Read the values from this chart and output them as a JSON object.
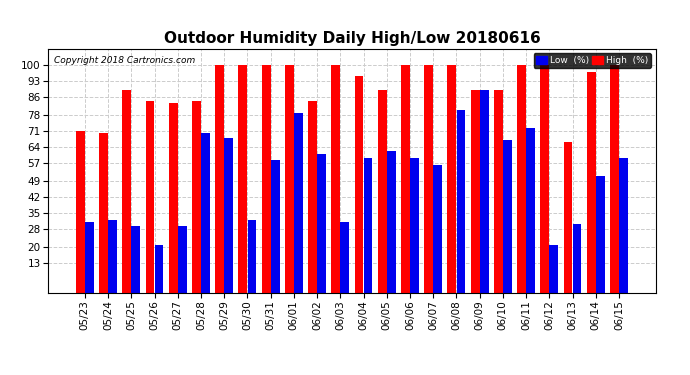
{
  "title": "Outdoor Humidity Daily High/Low 20180616",
  "copyright": "Copyright 2018 Cartronics.com",
  "legend_low": "Low  (%)",
  "legend_high": "High  (%)",
  "categories": [
    "05/23",
    "05/24",
    "05/25",
    "05/26",
    "05/27",
    "05/28",
    "05/29",
    "05/30",
    "05/31",
    "06/01",
    "06/02",
    "06/03",
    "06/04",
    "06/05",
    "06/06",
    "06/07",
    "06/08",
    "06/09",
    "06/10",
    "06/11",
    "06/12",
    "06/13",
    "06/14",
    "06/15"
  ],
  "high": [
    71,
    70,
    89,
    84,
    83,
    84,
    100,
    100,
    100,
    100,
    84,
    100,
    95,
    89,
    100,
    100,
    100,
    89,
    89,
    100,
    100,
    66,
    97,
    100
  ],
  "low": [
    31,
    32,
    29,
    21,
    29,
    70,
    68,
    32,
    58,
    79,
    61,
    31,
    59,
    62,
    59,
    56,
    80,
    89,
    67,
    72,
    21,
    30,
    51,
    59
  ],
  "high_color": "#ff0000",
  "low_color": "#0000ee",
  "bg_color": "#ffffff",
  "plot_bg": "#ffffff",
  "border_color": "#000000",
  "yticks": [
    13,
    20,
    28,
    35,
    42,
    49,
    57,
    64,
    71,
    78,
    86,
    93,
    100
  ],
  "ylim": [
    0,
    107
  ],
  "title_fontsize": 11,
  "tick_fontsize": 7.5,
  "bar_width": 0.38,
  "bar_gap": 0.01
}
